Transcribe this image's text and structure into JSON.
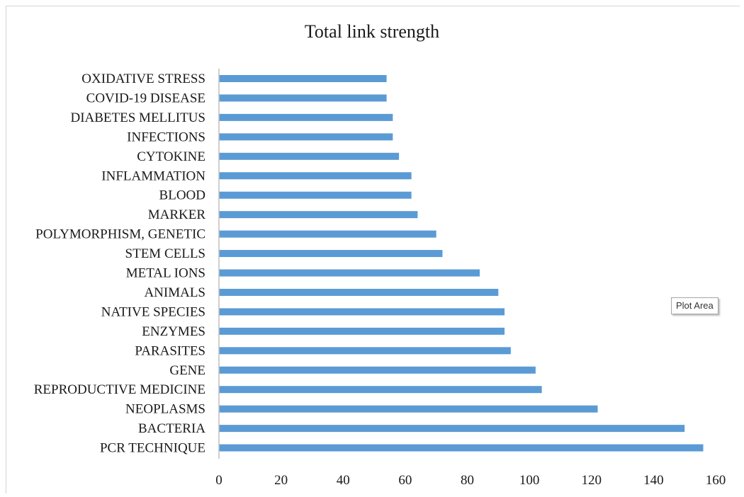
{
  "chart_data": {
    "type": "bar",
    "orientation": "horizontal",
    "title": "Total link strength",
    "categories": [
      "PCR TECHNIQUE",
      "BACTERIA",
      "NEOPLASMS",
      "REPRODUCTIVE MEDICINE",
      "GENE",
      "PARASITES",
      "ENZYMES",
      "NATIVE SPECIES",
      "ANIMALS",
      "METAL IONS",
      "STEM CELLS",
      "POLYMORPHISM, GENETIC",
      "MARKER",
      "BLOOD",
      "INFLAMMATION",
      "CYTOKINE",
      "INFECTIONS",
      "DIABETES MELLITUS",
      "COVID-19 DISEASE",
      "OXIDATIVE STRESS"
    ],
    "values": [
      156,
      150,
      122,
      104,
      102,
      94,
      92,
      92,
      90,
      84,
      72,
      70,
      64,
      62,
      62,
      58,
      56,
      56,
      54,
      54
    ],
    "xlim": [
      0,
      160
    ],
    "xticks": [
      0,
      20,
      40,
      60,
      80,
      100,
      120,
      140,
      160
    ],
    "xlabel": "",
    "ylabel": "",
    "grid": false,
    "legend": "none",
    "bar_color": "#5b9bd5"
  },
  "tooltip": {
    "text": "Plot Area"
  }
}
